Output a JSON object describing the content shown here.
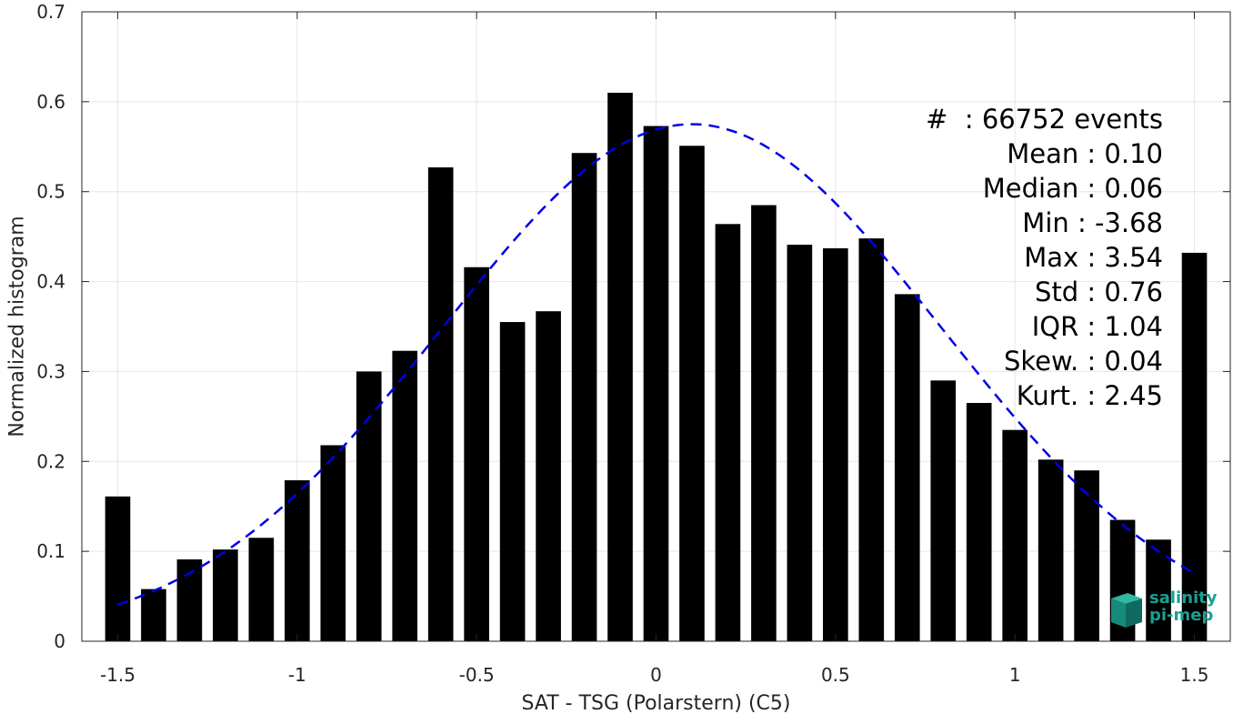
{
  "chart_data": {
    "type": "bar",
    "xlabel": "SAT - TSG (Polarstern) (C5)",
    "ylabel": "Normalized histogram",
    "xlim": [
      -1.6,
      1.6
    ],
    "ylim": [
      0,
      0.7
    ],
    "xticks": [
      -1.5,
      -1,
      -0.5,
      0,
      0.5,
      1,
      1.5
    ],
    "xtick_labels": [
      "-1.5",
      "-1",
      "-0.5",
      "0",
      "0.5",
      "1",
      "1.5"
    ],
    "yticks": [
      0,
      0.1,
      0.2,
      0.3,
      0.4,
      0.5,
      0.6,
      0.7
    ],
    "ytick_labels": [
      "0",
      "0.1",
      "0.2",
      "0.3",
      "0.4",
      "0.5",
      "0.6",
      "0.7"
    ],
    "grid": true,
    "bar_width": 0.07,
    "bar_color": "#000000",
    "bins": [
      -1.5,
      -1.4,
      -1.3,
      -1.2,
      -1.1,
      -1.0,
      -0.9,
      -0.8,
      -0.7,
      -0.6,
      -0.5,
      -0.4,
      -0.3,
      -0.2,
      -0.1,
      0.0,
      0.1,
      0.2,
      0.3,
      0.4,
      0.5,
      0.6,
      0.7,
      0.8,
      0.9,
      1.0,
      1.1,
      1.2,
      1.3,
      1.4,
      1.5
    ],
    "values": [
      0.161,
      0.058,
      0.091,
      0.102,
      0.115,
      0.179,
      0.218,
      0.3,
      0.323,
      0.527,
      0.416,
      0.355,
      0.367,
      0.543,
      0.61,
      0.573,
      0.551,
      0.464,
      0.485,
      0.441,
      0.437,
      0.448,
      0.386,
      0.29,
      0.265,
      0.235,
      0.202,
      0.19,
      0.135,
      0.113,
      0.432
    ],
    "fit": {
      "type": "normal",
      "style": "dashed",
      "color": "#0000e6",
      "mean": 0.1,
      "std": 0.695,
      "peak": 0.575,
      "x_range": [
        -1.5,
        1.5
      ]
    }
  },
  "stats": {
    "lines": [
      "#  : 66752 events",
      "Mean : 0.10",
      "Median : 0.06",
      "Min : -3.68",
      "Max : 3.54",
      "Std : 0.76",
      "IQR : 1.04",
      "Skew. : 0.04",
      "Kurt. : 2.45"
    ]
  },
  "logo": {
    "line1": "salinity",
    "line2": "pi-mep",
    "color": "#1aa090"
  }
}
